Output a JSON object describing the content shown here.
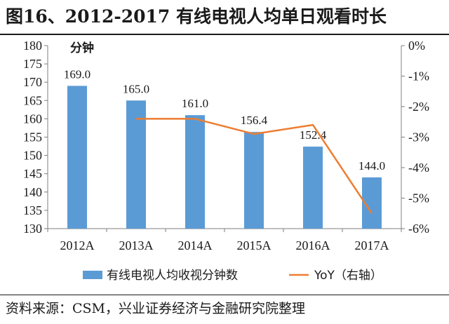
{
  "header": {
    "title": "图16、2012-2017 有线电视人均单日观看时长"
  },
  "footer": {
    "source": "资料来源：CSM，兴业证券经济与金融研究院整理"
  },
  "colors": {
    "bar": "#5b9bd5",
    "line": "#ed7d31",
    "axis": "#7f7f7f"
  },
  "chart_data": {
    "type": "bar",
    "categories": [
      "2012A",
      "2013A",
      "2014A",
      "2015A",
      "2016A",
      "2017A"
    ],
    "series": [
      {
        "name": "有线电视人均收视分钟数",
        "type": "bar",
        "axis": "left",
        "values": [
          169.0,
          165.0,
          161.0,
          156.4,
          152.4,
          144.0
        ],
        "labels": [
          "169.0",
          "165.0",
          "161.0",
          "156.4",
          "152.4",
          "144.0"
        ]
      },
      {
        "name": "YoY（右轴）",
        "type": "line",
        "axis": "right",
        "values": [
          null,
          -2.4,
          -2.4,
          -2.9,
          -2.6,
          -5.5
        ]
      }
    ],
    "y_left": {
      "label": "分钟",
      "ylim": [
        130,
        180
      ],
      "ticks": [
        130,
        135,
        140,
        145,
        150,
        155,
        160,
        165,
        170,
        175,
        180
      ],
      "tick_labels": [
        "130",
        "135",
        "140",
        "145",
        "150",
        "155",
        "160",
        "165",
        "170",
        "175",
        "180"
      ]
    },
    "y_right": {
      "unit": "%",
      "ylim": [
        -6,
        0
      ],
      "ticks": [
        0,
        -1,
        -2,
        -3,
        -4,
        -5,
        -6
      ],
      "tick_labels": [
        "0%",
        "-1%",
        "-2%",
        "-3%",
        "-4%",
        "-5%",
        "-6%"
      ]
    },
    "grid": false,
    "legend": {
      "position": "bottom"
    }
  }
}
